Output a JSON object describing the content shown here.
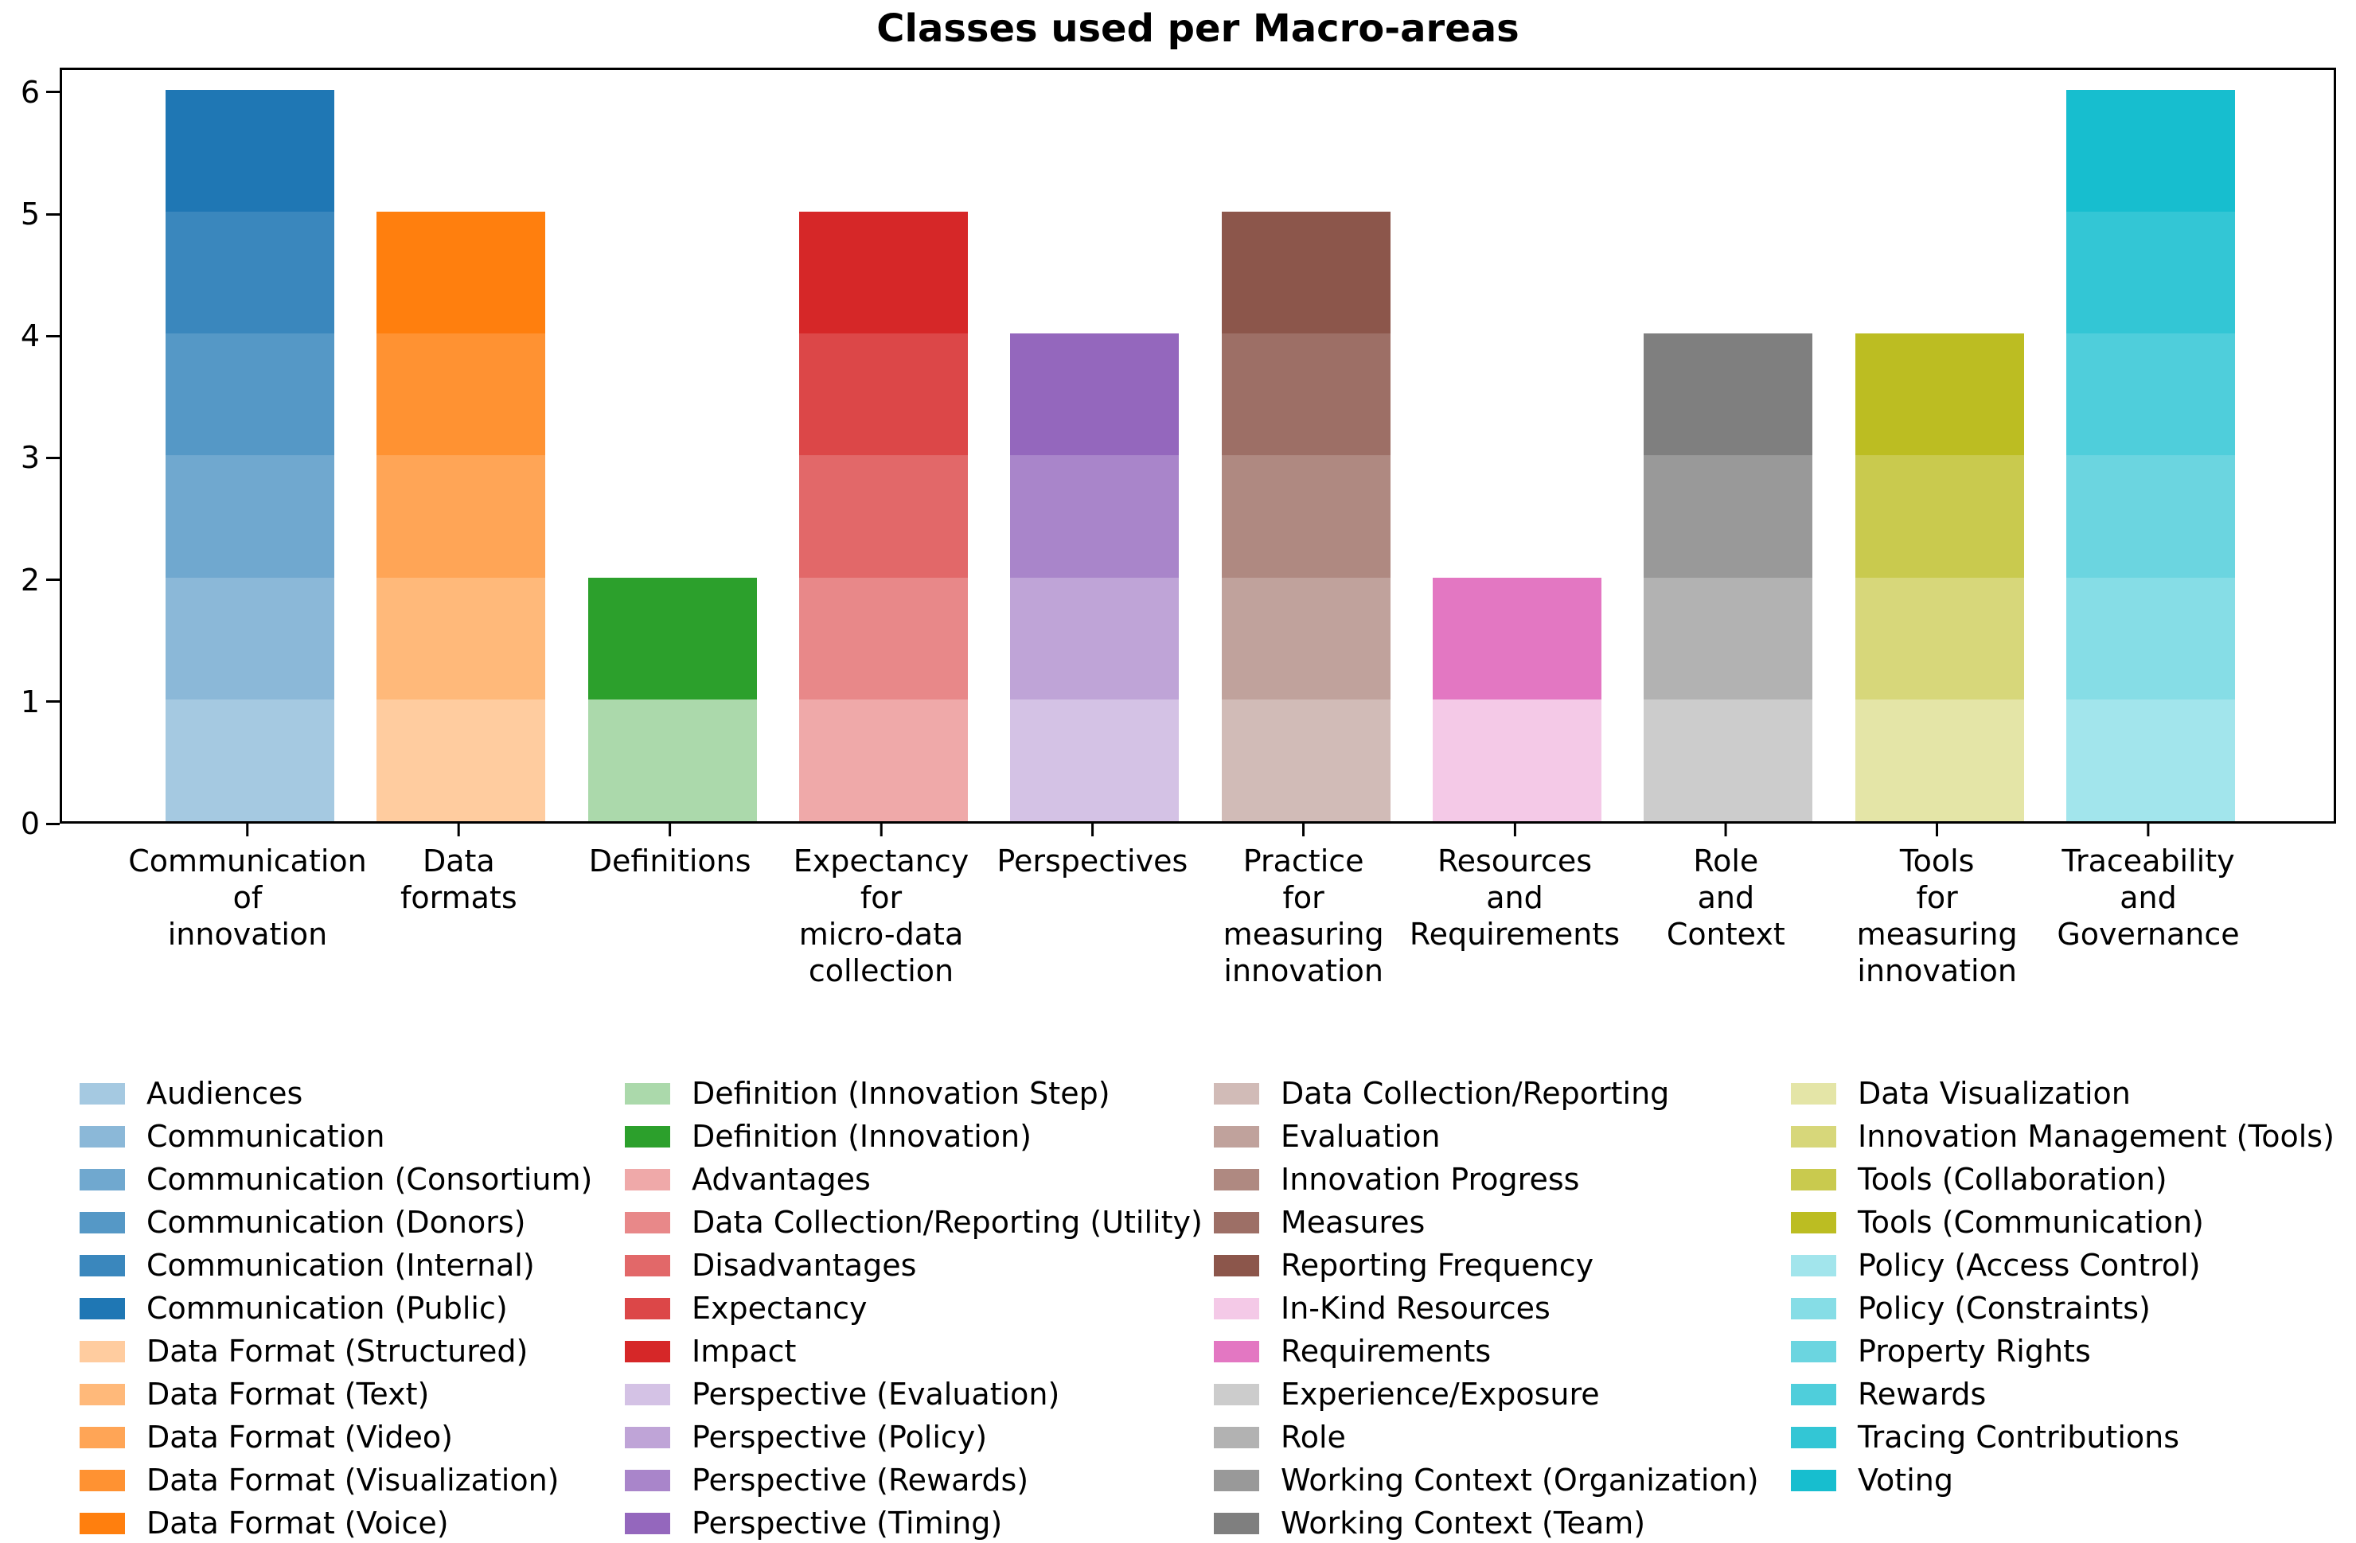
{
  "title": "Classes used per Macro-areas",
  "y_axis": {
    "ticks": [
      0,
      1,
      2,
      3,
      4,
      5,
      6
    ],
    "max": 6.2
  },
  "chart_data": {
    "type": "bar",
    "stacked": true,
    "title": "Classes used per Macro-areas",
    "xlabel": "",
    "ylabel": "",
    "ylim": [
      0,
      6.2
    ],
    "grid": false,
    "legend_position": "bottom",
    "legend_columns": 4,
    "categories": [
      "Communication of innovation",
      "Data formats",
      "Definitions",
      "Expectancy for micro-data collection",
      "Perspectives",
      "Practice for measuring innovation",
      "Resources and Requirements",
      "Role and Context",
      "Tools for measuring innovation",
      "Traceability and Governance"
    ],
    "totals": [
      6,
      5,
      2,
      5,
      4,
      5,
      2,
      4,
      4,
      6
    ],
    "bars": [
      {
        "category": "Communication of innovation",
        "label_lines": [
          "Communication",
          "of",
          "innovation"
        ],
        "total": 6,
        "segments": [
          {
            "label": "Audiences",
            "value": 1,
            "color": "#a5c9e1"
          },
          {
            "label": "Communication",
            "value": 1,
            "color": "#8bb8d8"
          },
          {
            "label": "Communication (Consortium)",
            "value": 1,
            "color": "#70a8cf"
          },
          {
            "label": "Communication (Donors)",
            "value": 1,
            "color": "#5598c6"
          },
          {
            "label": "Communication (Internal)",
            "value": 1,
            "color": "#3a87bd"
          },
          {
            "label": "Communication (Public)",
            "value": 1,
            "color": "#1f77b4"
          }
        ]
      },
      {
        "category": "Data formats",
        "label_lines": [
          "Data",
          "formats"
        ],
        "total": 5,
        "segments": [
          {
            "label": "Data Format (Structured)",
            "value": 1,
            "color": "#ffcc9f"
          },
          {
            "label": "Data Format (Text)",
            "value": 1,
            "color": "#ffb97a"
          },
          {
            "label": "Data Format (Video)",
            "value": 1,
            "color": "#ffa556"
          },
          {
            "label": "Data Format (Visualization)",
            "value": 1,
            "color": "#ff9232"
          },
          {
            "label": "Data Format (Voice)",
            "value": 1,
            "color": "#ff7f0e"
          }
        ]
      },
      {
        "category": "Definitions",
        "label_lines": [
          "Definitions"
        ],
        "total": 2,
        "segments": [
          {
            "label": "Definition (Innovation Step)",
            "value": 1,
            "color": "#abd9ab"
          },
          {
            "label": "Definition (Innovation)",
            "value": 1,
            "color": "#2ca02c"
          }
        ]
      },
      {
        "category": "Expectancy for micro-data collection",
        "label_lines": [
          "Expectancy",
          "for",
          "micro-data",
          "collection"
        ],
        "total": 5,
        "segments": [
          {
            "label": "Advantages",
            "value": 1,
            "color": "#efa9a9"
          },
          {
            "label": "Data Collection/Reporting (Utility)",
            "value": 1,
            "color": "#e88889"
          },
          {
            "label": "Disadvantages",
            "value": 1,
            "color": "#e26869"
          },
          {
            "label": "Expectancy",
            "value": 1,
            "color": "#dc4748"
          },
          {
            "label": "Impact",
            "value": 1,
            "color": "#d62728"
          }
        ]
      },
      {
        "category": "Perspectives",
        "label_lines": [
          "Perspectives"
        ],
        "total": 4,
        "segments": [
          {
            "label": "Perspective (Evaluation)",
            "value": 1,
            "color": "#d4c2e5"
          },
          {
            "label": "Perspective (Policy)",
            "value": 1,
            "color": "#bfa4d7"
          },
          {
            "label": "Perspective (Rewards)",
            "value": 1,
            "color": "#a985ca"
          },
          {
            "label": "Perspective (Timing)",
            "value": 1,
            "color": "#9467bd"
          }
        ]
      },
      {
        "category": "Practice for measuring innovation",
        "label_lines": [
          "Practice",
          "for",
          "measuring",
          "innovation"
        ],
        "total": 5,
        "segments": [
          {
            "label": "Data Collection/Reporting",
            "value": 1,
            "color": "#d1bbb7"
          },
          {
            "label": "Evaluation",
            "value": 1,
            "color": "#c0a29c"
          },
          {
            "label": "Innovation Progress",
            "value": 1,
            "color": "#af8981"
          },
          {
            "label": "Measures",
            "value": 1,
            "color": "#9d6f66"
          },
          {
            "label": "Reporting Frequency",
            "value": 1,
            "color": "#8c564b"
          }
        ]
      },
      {
        "category": "Resources and Requirements",
        "label_lines": [
          "Resources",
          "and",
          "Requirements"
        ],
        "total": 2,
        "segments": [
          {
            "label": "In-Kind Resources",
            "value": 1,
            "color": "#f4c9e7"
          },
          {
            "label": "Requirements",
            "value": 1,
            "color": "#e377c2"
          }
        ]
      },
      {
        "category": "Role and Context",
        "label_lines": [
          "Role",
          "and",
          "Context"
        ],
        "total": 4,
        "segments": [
          {
            "label": "Experience/Exposure",
            "value": 1,
            "color": "#cccccc"
          },
          {
            "label": "Role",
            "value": 1,
            "color": "#b2b2b2"
          },
          {
            "label": "Working Context (Organization)",
            "value": 1,
            "color": "#999999"
          },
          {
            "label": "Working Context (Team)",
            "value": 1,
            "color": "#7f7f7f"
          }
        ]
      },
      {
        "category": "Tools for measuring innovation",
        "label_lines": [
          "Tools",
          "for",
          "measuring",
          "innovation"
        ],
        "total": 4,
        "segments": [
          {
            "label": "Data Visualization",
            "value": 1,
            "color": "#e4e5a7"
          },
          {
            "label": "Innovation Management (Tools)",
            "value": 1,
            "color": "#d7d77a"
          },
          {
            "label": "Tools (Collaboration)",
            "value": 1,
            "color": "#c9ca4e"
          },
          {
            "label": "Tools (Communication)",
            "value": 1,
            "color": "#bcbd22"
          }
        ]
      },
      {
        "category": "Traceability and Governance",
        "label_lines": [
          "Traceability",
          "and",
          "Governance"
        ],
        "total": 6,
        "segments": [
          {
            "label": "Policy (Access Control)",
            "value": 1,
            "color": "#a2e5ec"
          },
          {
            "label": "Policy (Constraints)",
            "value": 1,
            "color": "#86dde6"
          },
          {
            "label": "Property Rights",
            "value": 1,
            "color": "#6bd5e0"
          },
          {
            "label": "Rewards",
            "value": 1,
            "color": "#4fcedb"
          },
          {
            "label": "Tracing Contributions",
            "value": 1,
            "color": "#33c6d5"
          },
          {
            "label": "Voting",
            "value": 1,
            "color": "#17becf"
          }
        ]
      }
    ]
  },
  "legend": {
    "columns": [
      [
        {
          "label": "Audiences",
          "color": "#a5c9e1"
        },
        {
          "label": "Communication",
          "color": "#8bb8d8"
        },
        {
          "label": "Communication (Consortium)",
          "color": "#70a8cf"
        },
        {
          "label": "Communication (Donors)",
          "color": "#5598c6"
        },
        {
          "label": "Communication (Internal)",
          "color": "#3a87bd"
        },
        {
          "label": "Communication (Public)",
          "color": "#1f77b4"
        },
        {
          "label": "Data Format (Structured)",
          "color": "#ffcc9f"
        },
        {
          "label": "Data Format (Text)",
          "color": "#ffb97a"
        },
        {
          "label": "Data Format (Video)",
          "color": "#ffa556"
        },
        {
          "label": "Data Format (Visualization)",
          "color": "#ff9232"
        },
        {
          "label": "Data Format (Voice)",
          "color": "#ff7f0e"
        }
      ],
      [
        {
          "label": "Definition (Innovation Step)",
          "color": "#abd9ab"
        },
        {
          "label": "Definition (Innovation)",
          "color": "#2ca02c"
        },
        {
          "label": "Advantages",
          "color": "#efa9a9"
        },
        {
          "label": "Data Collection/Reporting (Utility)",
          "color": "#e88889"
        },
        {
          "label": "Disadvantages",
          "color": "#e26869"
        },
        {
          "label": "Expectancy",
          "color": "#dc4748"
        },
        {
          "label": "Impact",
          "color": "#d62728"
        },
        {
          "label": "Perspective (Evaluation)",
          "color": "#d4c2e5"
        },
        {
          "label": "Perspective (Policy)",
          "color": "#bfa4d7"
        },
        {
          "label": "Perspective (Rewards)",
          "color": "#a985ca"
        },
        {
          "label": "Perspective (Timing)",
          "color": "#9467bd"
        }
      ],
      [
        {
          "label": "Data Collection/Reporting",
          "color": "#d1bbb7"
        },
        {
          "label": "Evaluation",
          "color": "#c0a29c"
        },
        {
          "label": "Innovation Progress",
          "color": "#af8981"
        },
        {
          "label": "Measures",
          "color": "#9d6f66"
        },
        {
          "label": "Reporting Frequency",
          "color": "#8c564b"
        },
        {
          "label": "In-Kind Resources",
          "color": "#f4c9e7"
        },
        {
          "label": "Requirements",
          "color": "#e377c2"
        },
        {
          "label": "Experience/Exposure",
          "color": "#cccccc"
        },
        {
          "label": "Role",
          "color": "#b2b2b2"
        },
        {
          "label": "Working Context (Organization)",
          "color": "#999999"
        },
        {
          "label": "Working Context (Team)",
          "color": "#7f7f7f"
        }
      ],
      [
        {
          "label": "Data Visualization",
          "color": "#e4e5a7"
        },
        {
          "label": "Innovation Management (Tools)",
          "color": "#d7d77a"
        },
        {
          "label": "Tools (Collaboration)",
          "color": "#c9ca4e"
        },
        {
          "label": "Tools (Communication)",
          "color": "#bcbd22"
        },
        {
          "label": "Policy (Access Control)",
          "color": "#a2e5ec"
        },
        {
          "label": "Policy (Constraints)",
          "color": "#86dde6"
        },
        {
          "label": "Property Rights",
          "color": "#6bd5e0"
        },
        {
          "label": "Rewards",
          "color": "#4fcedb"
        },
        {
          "label": "Tracing Contributions",
          "color": "#33c6d5"
        },
        {
          "label": "Voting",
          "color": "#17becf"
        }
      ]
    ]
  }
}
